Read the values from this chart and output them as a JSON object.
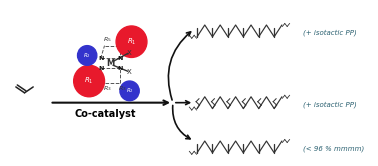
{
  "background_color": "#ffffff",
  "fig_width": 3.78,
  "fig_height": 1.66,
  "dpi": 100,
  "arrow_color": "#111111",
  "text_color": "#2a6070",
  "bold_text_color": "#000000",
  "red_sphere_color": "#e8192c",
  "blue_sphere_color": "#3333cc",
  "chain_color": "#333333",
  "label1": "(+ isotactic PP)",
  "label2": "(+ isotactic PP)",
  "label3": "(< 96 % mmmm)",
  "cocatalyst_label": "Co-catalyst"
}
